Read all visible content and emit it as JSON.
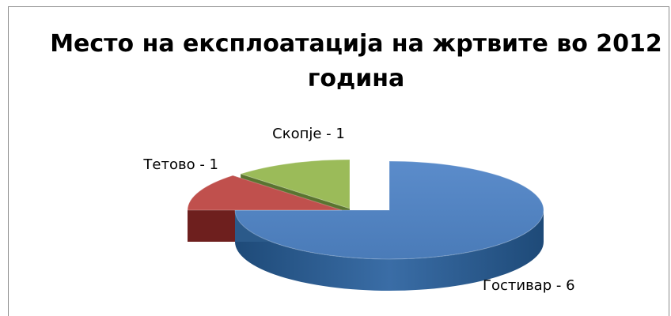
{
  "chart_data": {
    "type": "pie",
    "title": "Место на експлоатација на жртвите во 2012 година",
    "style": "3d-exploded",
    "categories": [
      "Гостивар",
      "Тетово",
      "Скопје"
    ],
    "values": [
      6,
      1,
      1
    ],
    "colors": [
      "#4f81bd",
      "#c0504d",
      "#9bbb59"
    ],
    "side_colors": [
      "#2b5a8a",
      "#6e1f1e",
      "#5a7430"
    ],
    "data_labels": [
      "Гостивар  - 6",
      "Тетово - 1",
      "Скопје - 1"
    ],
    "legend": "none"
  }
}
